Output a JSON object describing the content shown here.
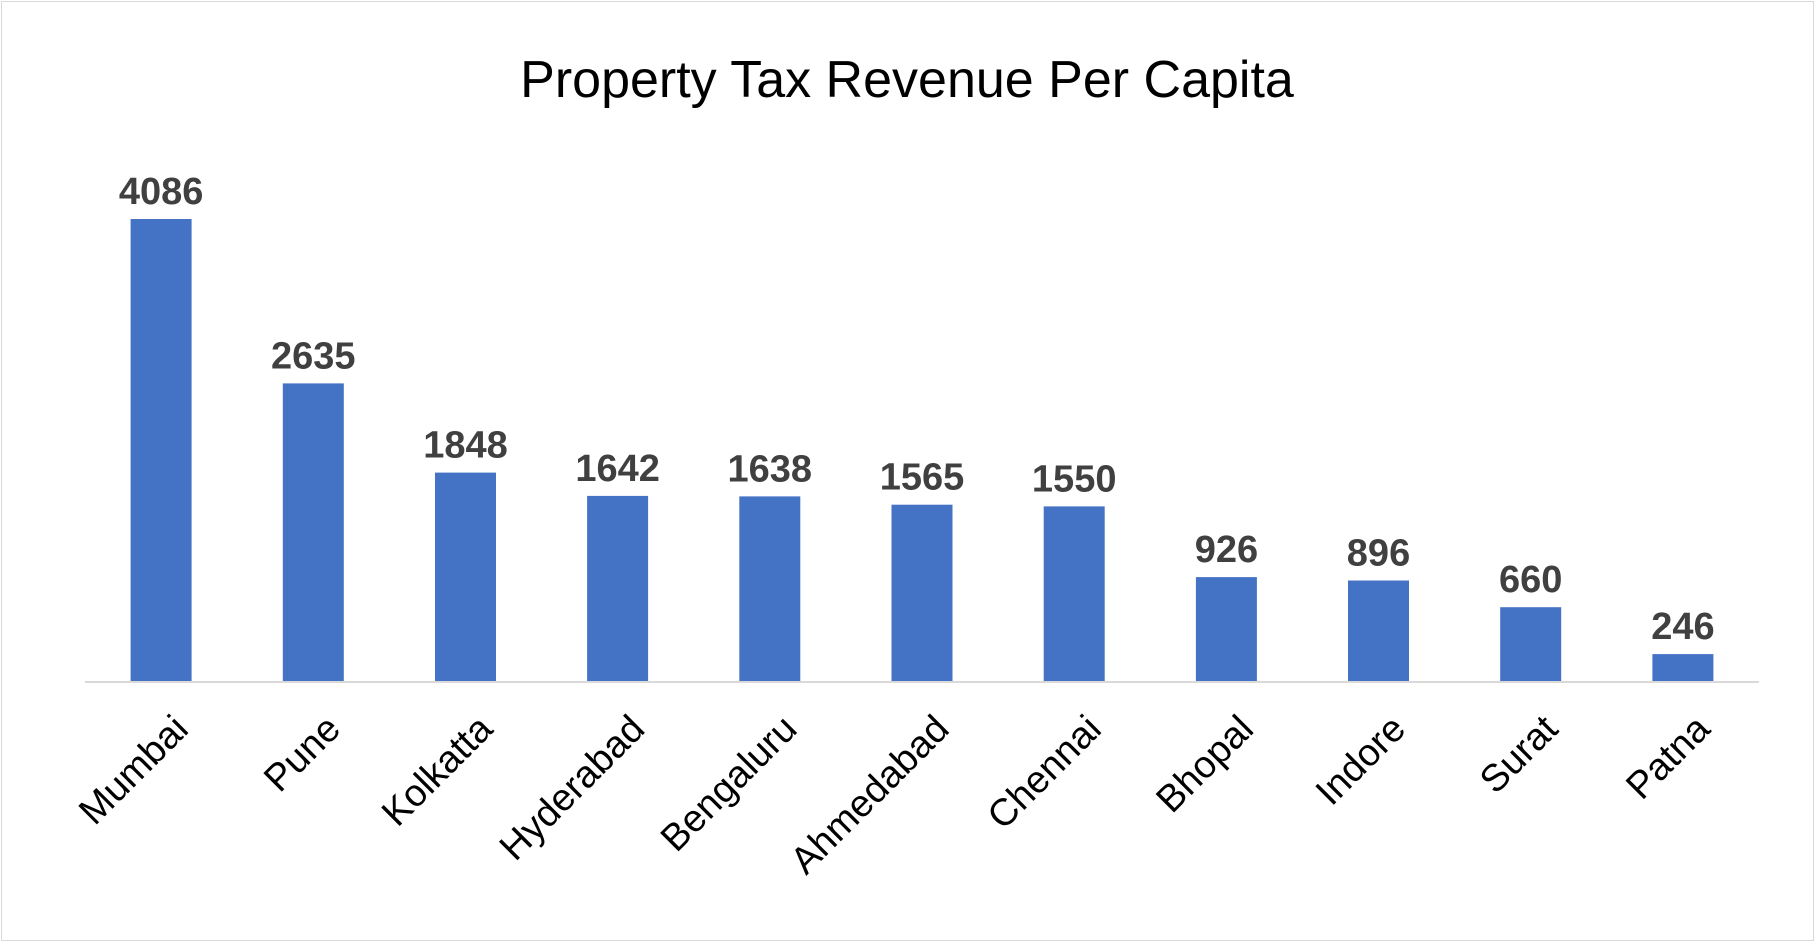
{
  "chart_data": {
    "type": "bar",
    "title": "Property Tax Revenue Per Capita",
    "xlabel": "",
    "ylabel": "",
    "categories": [
      "Mumbai",
      "Pune",
      "Kolkatta",
      "Hyderabad",
      "Bengaluru",
      "Ahmedabad",
      "Chennai",
      "Bhopal",
      "Indore",
      "Surat",
      "Patna"
    ],
    "values": [
      4086,
      2635,
      1848,
      1642,
      1638,
      1565,
      1550,
      926,
      896,
      660,
      246
    ],
    "ylim": [
      0,
      4086
    ],
    "grid": false,
    "legend": "none",
    "data_labels": true,
    "bar_color": "#4472C4",
    "label_color": "#404040",
    "axis_color": "#d9d9d9"
  }
}
